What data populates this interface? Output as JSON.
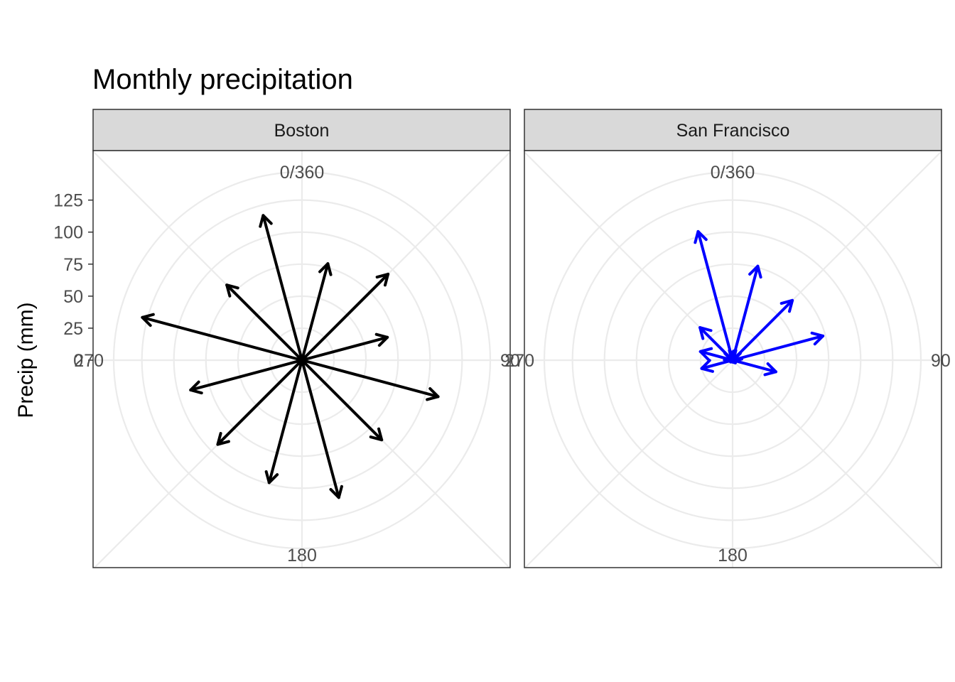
{
  "chart_data": {
    "type": "polar-vector",
    "title": "Monthly precipitation",
    "ylabel": "Precip (mm)",
    "xlabel": "",
    "r_ticks": [
      0,
      25,
      50,
      75,
      100,
      125
    ],
    "r_max": 147,
    "angle_labels": [
      {
        "angle": 0,
        "label": "0/360"
      },
      {
        "angle": 90,
        "label": "90"
      },
      {
        "angle": 180,
        "label": "180"
      },
      {
        "angle": 270,
        "label": "270"
      }
    ],
    "grid": true,
    "facets": [
      {
        "name": "Boston",
        "color": "#000000",
        "vectors": [
          {
            "angle": 15,
            "r": 78
          },
          {
            "angle": 45,
            "r": 95
          },
          {
            "angle": 75,
            "r": 69
          },
          {
            "angle": 105,
            "r": 110
          },
          {
            "angle": 135,
            "r": 88
          },
          {
            "angle": 165,
            "r": 111
          },
          {
            "angle": 195,
            "r": 99
          },
          {
            "angle": 225,
            "r": 93
          },
          {
            "angle": 255,
            "r": 90
          },
          {
            "angle": 285,
            "r": 129
          },
          {
            "angle": 315,
            "r": 83
          },
          {
            "angle": 345,
            "r": 117
          }
        ]
      },
      {
        "name": "San Francisco",
        "color": "#0000ff",
        "vectors": [
          {
            "angle": 15,
            "r": 76
          },
          {
            "angle": 45,
            "r": 66
          },
          {
            "angle": 75,
            "r": 73
          },
          {
            "angle": 105,
            "r": 35
          },
          {
            "angle": 135,
            "r": 3
          },
          {
            "angle": 165,
            "r": 1
          },
          {
            "angle": 195,
            "r": 1
          },
          {
            "angle": 225,
            "r": 2
          },
          {
            "angle": 255,
            "r": 25
          },
          {
            "angle": 285,
            "r": 26
          },
          {
            "angle": 315,
            "r": 36
          },
          {
            "angle": 345,
            "r": 104
          }
        ]
      }
    ]
  },
  "colors": {
    "panel_border": "#333333",
    "strip_fill": "#d9d9d9",
    "grid": "#ebebeb",
    "tick_text": "#4d4d4d"
  }
}
